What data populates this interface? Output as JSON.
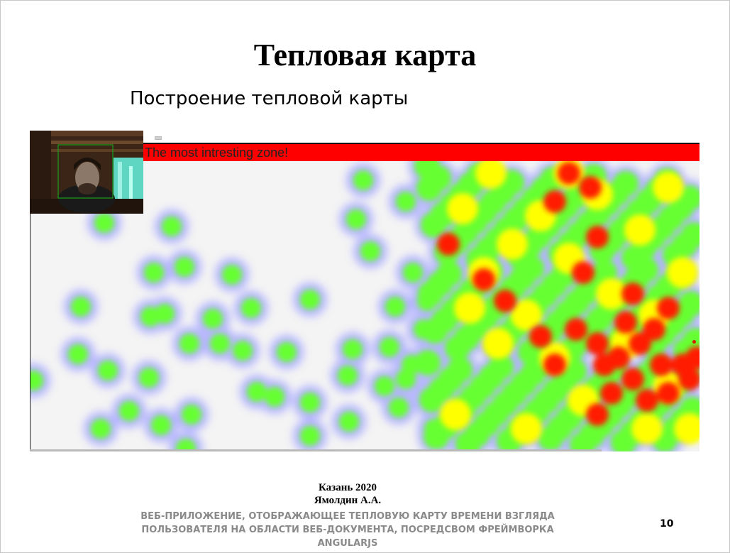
{
  "slide": {
    "title": "Тепловая карта",
    "subtitle": "Построение тепловой карты",
    "page_number": "10"
  },
  "screenshot": {
    "banner_text": "The most intresting zone!",
    "heatmap_colors": [
      "#ff1a00",
      "#ffff00",
      "#66ff33",
      "#aaaaff"
    ]
  },
  "footer": {
    "city_year": "Казань 2020",
    "author": "Ямолдин А.А.",
    "description_lines": [
      "ВЕБ-ПРИЛОЖЕНИЕ, ОТОБРАЖАЮЩЕЕ ТЕПЛОВУЮ КАРТУ ВРЕМЕНИ ВЗГЛЯДА",
      "ПОЛЬЗОВАТЕЛЯ НА ОБЛАСТИ ВЕБ-ДОКУМЕНТА, ПОСРЕДСВОМ ФРЕЙМВОРКА",
      "ANGULARJS"
    ]
  }
}
